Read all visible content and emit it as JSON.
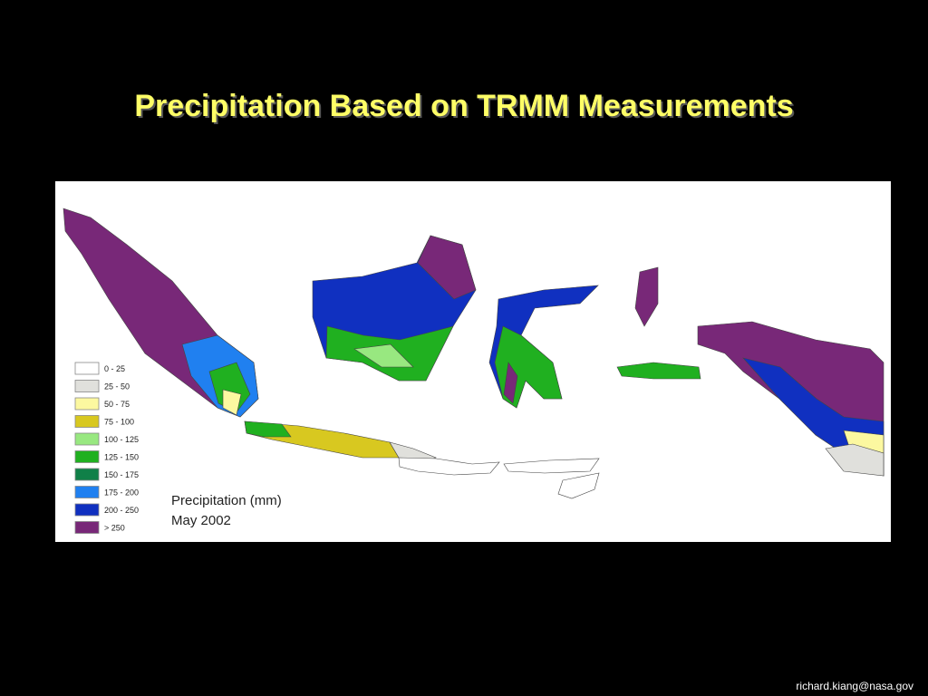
{
  "title": "Precipitation Based on TRMM Measurements",
  "legend": [
    {
      "label": "0 - 25",
      "color": "#ffffff"
    },
    {
      "label": "25 - 50",
      "color": "#e0e0dc"
    },
    {
      "label": "50 - 75",
      "color": "#fcf8a0"
    },
    {
      "label": "75 - 100",
      "color": "#d8c820"
    },
    {
      "label": "100 - 125",
      "color": "#98e880"
    },
    {
      "label": "125 - 150",
      "color": "#20b020"
    },
    {
      "label": "150 - 175",
      "color": "#108048"
    },
    {
      "label": "175 - 200",
      "color": "#2080f0"
    },
    {
      "label": "200 - 250",
      "color": "#1030c0"
    },
    {
      "label": "> 250",
      "color": "#782878"
    }
  ],
  "caption": {
    "line1": "Precipitation (mm)",
    "line2": "May 2002"
  },
  "footer": "richard.kiang@nasa.gov"
}
